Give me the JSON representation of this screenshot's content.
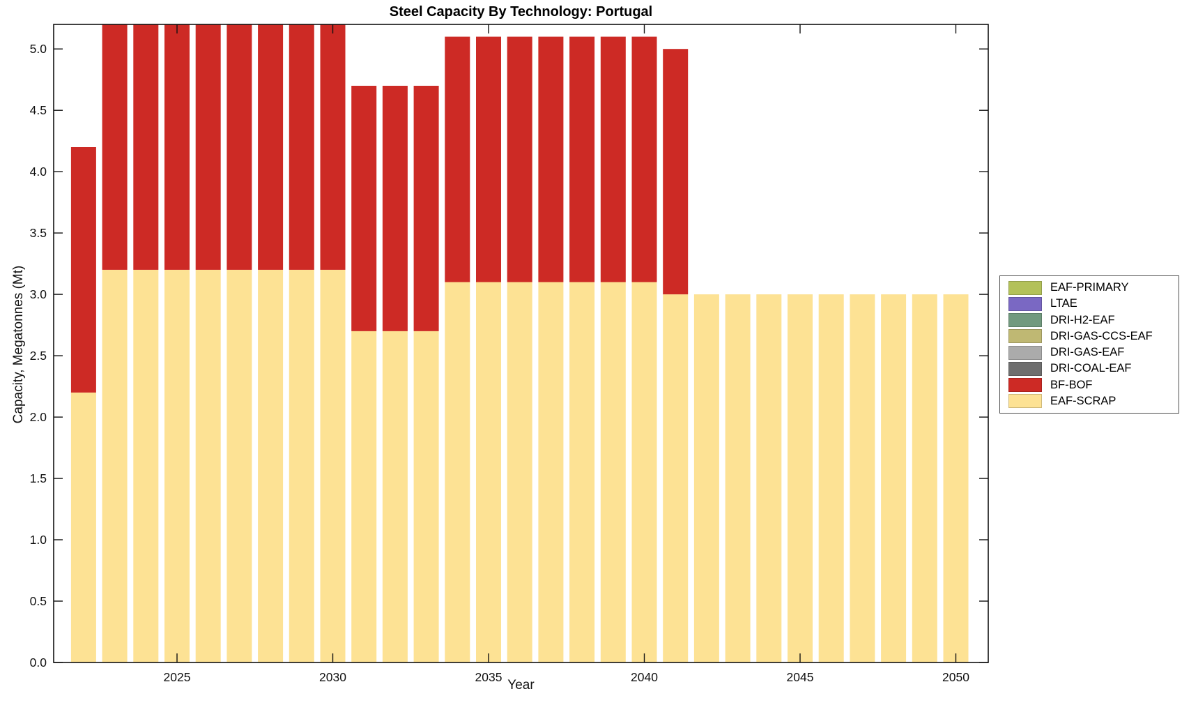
{
  "title": "Steel Capacity By Technology: Portugal",
  "colors": {
    "EAF-PRIMARY": "#B3C159",
    "LTAE": "#7A68C3",
    "DRI-H2-EAF": "#71997E",
    "DRI-GAS-CCS-EAF": "#BFB873",
    "DRI-GAS-EAF": "#ABABAB",
    "DRI-COAL-EAF": "#6E6E6E",
    "BF-BOF": "#CD2A25",
    "EAF-SCRAP": "#FDE294",
    "axis": "#111111"
  },
  "legend": {
    "items": [
      {
        "label": "EAF-PRIMARY"
      },
      {
        "label": "LTAE"
      },
      {
        "label": "DRI-H2-EAF"
      },
      {
        "label": "DRI-GAS-CCS-EAF"
      },
      {
        "label": "DRI-GAS-EAF"
      },
      {
        "label": "DRI-COAL-EAF"
      },
      {
        "label": "BF-BOF"
      },
      {
        "label": "EAF-SCRAP"
      }
    ]
  },
  "axis": {
    "x_tick_labels": [
      "2025",
      "2030",
      "2035",
      "2040",
      "2045",
      "2050"
    ],
    "y_tick_labels": [
      "0.0",
      "0.5",
      "1.0",
      "1.5",
      "2.0",
      "2.5",
      "3.0",
      "3.5",
      "4.0",
      "4.5",
      "5.0"
    ]
  },
  "chart_data": {
    "type": "bar",
    "stacked": true,
    "title": "Steel Capacity By Technology: Portugal",
    "xlabel": "Year",
    "ylabel": "Capacity, Megatonnes (Mt)",
    "xlim": [
      2021.04,
      2051.04
    ],
    "ylim": [
      0,
      5.2
    ],
    "x_ticks": [
      2025,
      2030,
      2035,
      2040,
      2045,
      2050
    ],
    "y_ticks": [
      0,
      0.5,
      1.0,
      1.5,
      2.0,
      2.5,
      3.0,
      3.5,
      4.0,
      4.5,
      5.0
    ],
    "grid": false,
    "legend_position": "outside-right",
    "categories": [
      2022,
      2023,
      2024,
      2025,
      2026,
      2027,
      2028,
      2029,
      2030,
      2031,
      2032,
      2033,
      2034,
      2035,
      2036,
      2037,
      2038,
      2039,
      2040,
      2041,
      2042,
      2043,
      2044,
      2045,
      2046,
      2047,
      2048,
      2049,
      2050
    ],
    "series": [
      {
        "name": "EAF-PRIMARY",
        "values": [
          0,
          0,
          0,
          0,
          0,
          0,
          0,
          0,
          0,
          0,
          0,
          0,
          0,
          0,
          0,
          0,
          0,
          0,
          0,
          0,
          0,
          0,
          0,
          0,
          0,
          0,
          0,
          0,
          0
        ]
      },
      {
        "name": "LTAE",
        "values": [
          0,
          0,
          0,
          0,
          0,
          0,
          0,
          0,
          0,
          0,
          0,
          0,
          0,
          0,
          0,
          0,
          0,
          0,
          0,
          0,
          0,
          0,
          0,
          0,
          0,
          0,
          0,
          0,
          0
        ]
      },
      {
        "name": "DRI-H2-EAF",
        "values": [
          0,
          0,
          0,
          0,
          0,
          0,
          0,
          0,
          0,
          0,
          0,
          0,
          0,
          0,
          0,
          0,
          0,
          0,
          0,
          0,
          0,
          0,
          0,
          0,
          0,
          0,
          0,
          0,
          0
        ]
      },
      {
        "name": "DRI-GAS-CCS-EAF",
        "values": [
          0,
          0,
          0,
          0,
          0,
          0,
          0,
          0,
          0,
          0,
          0,
          0,
          0,
          0,
          0,
          0,
          0,
          0,
          0,
          0,
          0,
          0,
          0,
          0,
          0,
          0,
          0,
          0,
          0
        ]
      },
      {
        "name": "DRI-GAS-EAF",
        "values": [
          0,
          0,
          0,
          0,
          0,
          0,
          0,
          0,
          0,
          0,
          0,
          0,
          0,
          0,
          0,
          0,
          0,
          0,
          0,
          0,
          0,
          0,
          0,
          0,
          0,
          0,
          0,
          0,
          0
        ]
      },
      {
        "name": "DRI-COAL-EAF",
        "values": [
          0,
          0,
          0,
          0,
          0,
          0,
          0,
          0,
          0,
          0,
          0,
          0,
          0,
          0,
          0,
          0,
          0,
          0,
          0,
          0,
          0,
          0,
          0,
          0,
          0,
          0,
          0,
          0,
          0
        ]
      },
      {
        "name": "BF-BOF",
        "values": [
          2.0,
          2.0,
          2.0,
          2.0,
          2.0,
          2.0,
          2.0,
          2.0,
          2.0,
          2.0,
          2.0,
          2.0,
          2.0,
          2.0,
          2.0,
          2.0,
          2.0,
          2.0,
          2.0,
          2.0,
          0,
          0,
          0,
          0,
          0,
          0,
          0,
          0,
          0
        ]
      },
      {
        "name": "EAF-SCRAP",
        "values": [
          2.2,
          3.2,
          3.2,
          3.2,
          3.2,
          3.2,
          3.2,
          3.2,
          3.2,
          2.7,
          2.7,
          2.7,
          3.1,
          3.1,
          3.1,
          3.1,
          3.1,
          3.1,
          3.1,
          3.0,
          3.0,
          3.0,
          3.0,
          3.0,
          3.0,
          3.0,
          3.0,
          3.0,
          3.0
        ]
      }
    ]
  }
}
